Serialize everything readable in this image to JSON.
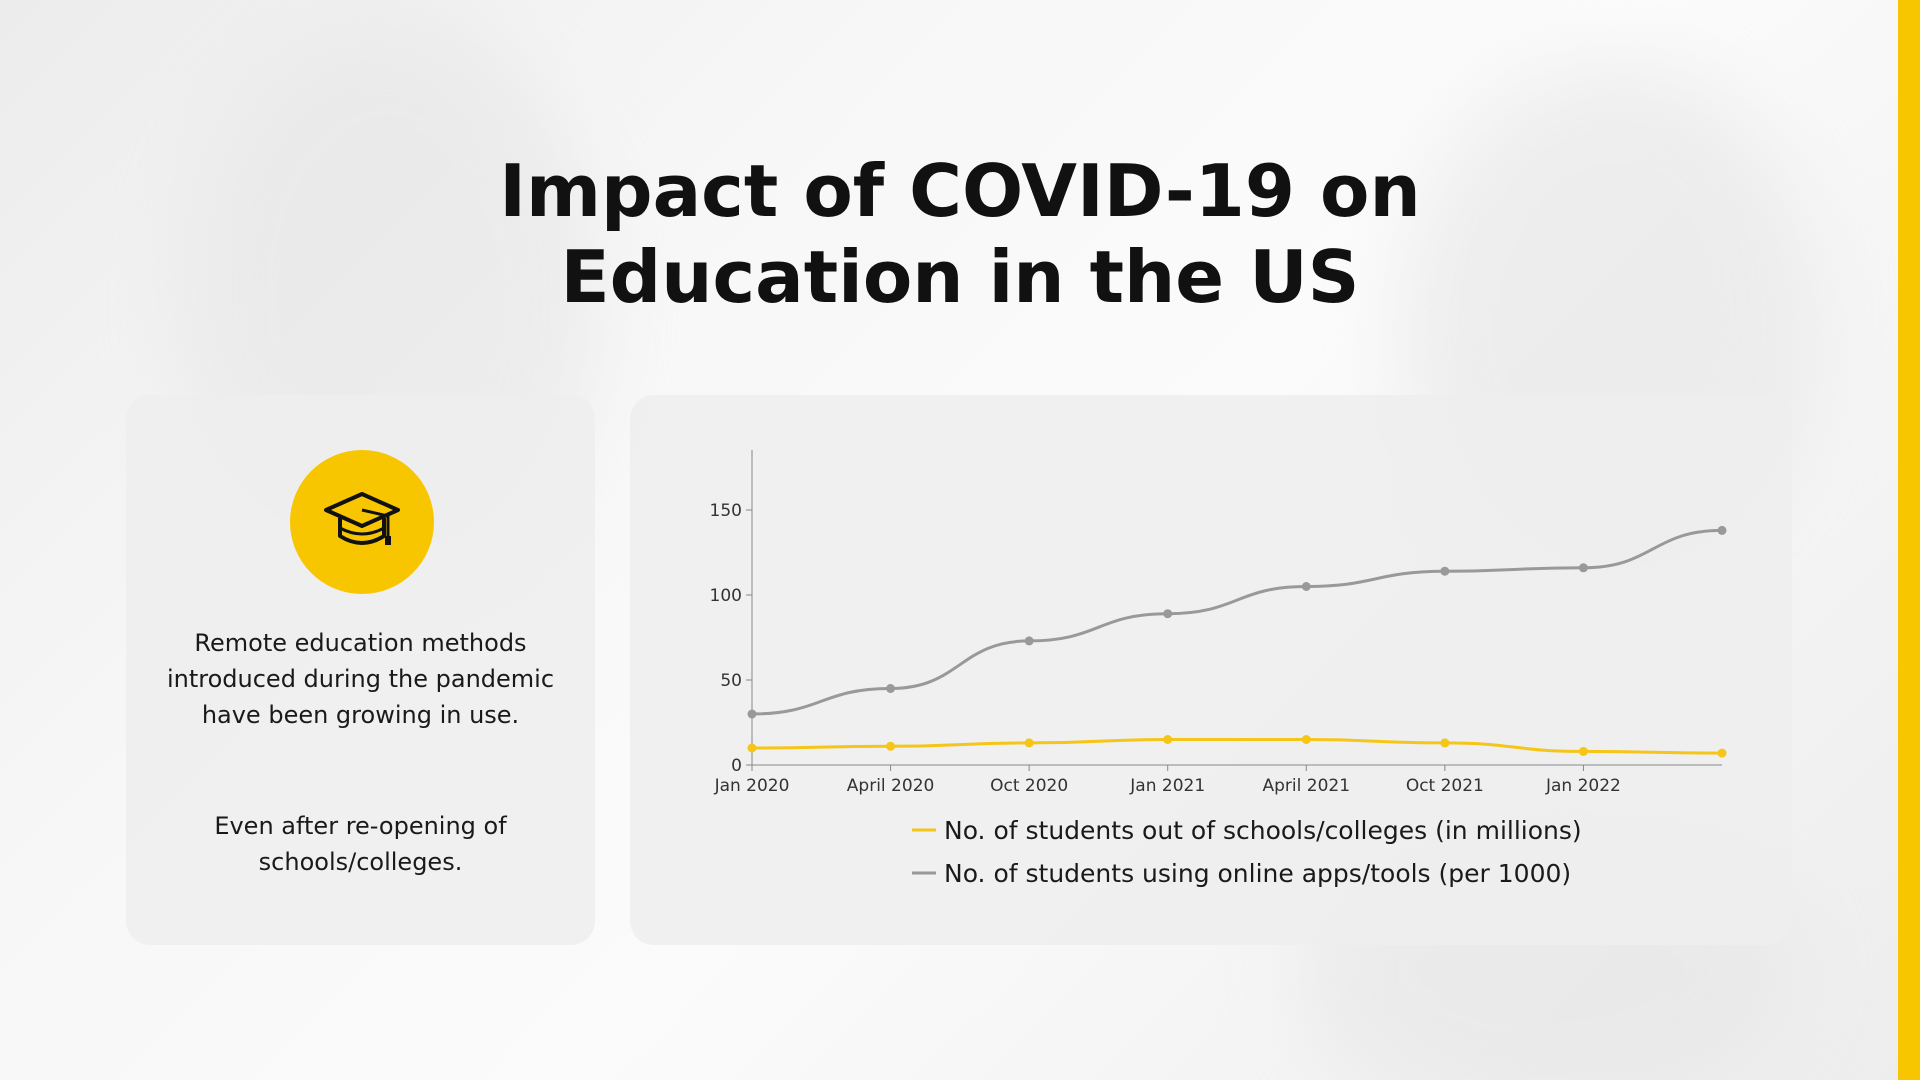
{
  "slide": {
    "title_line1": "Impact of COVID-19 on",
    "title_line2": "Education in the US",
    "accent_color": "#f7c600"
  },
  "info_card": {
    "icon": "graduation-cap-icon",
    "paragraph1": "Remote education methods introduced during the pandemic have been growing in use.",
    "paragraph2": "Even after re-opening of schools/colleges."
  },
  "chart_data": {
    "type": "line",
    "title": "",
    "xlabel": "",
    "ylabel": "",
    "x": [
      "Jan 2020",
      "April 2020",
      "Oct 2020",
      "Jan 2021",
      "April 2021",
      "Oct 2021",
      "Jan 2022",
      ""
    ],
    "tick_labels": [
      "Jan 2020",
      "April 2020",
      "Oct 2020",
      "Jan 2021",
      "April 2021",
      "Oct 2021",
      "Jan 2022"
    ],
    "ylim": [
      0,
      180
    ],
    "yticks": [
      0,
      50,
      100,
      150
    ],
    "grid": false,
    "legend_position": "bottom",
    "series": [
      {
        "name": "No. of students out of schools/colleges (in millions)",
        "color": "#f5c518",
        "values": [
          10,
          11,
          13,
          15,
          15,
          13,
          8,
          7
        ]
      },
      {
        "name": "No. of students using online apps/tools (per 1000)",
        "color": "#999999",
        "values": [
          30,
          45,
          73,
          89,
          105,
          114,
          116,
          138
        ]
      }
    ]
  }
}
